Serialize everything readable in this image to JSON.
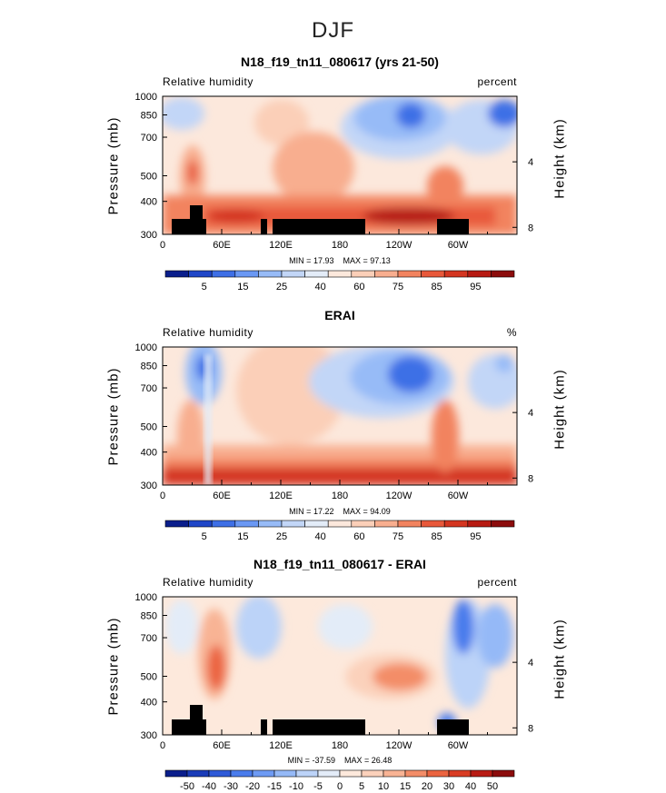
{
  "figure_title": "DJF",
  "chart_data": [
    {
      "type": "heatmap",
      "title": "N18_f19_tn11_080617 (yrs 21-50)",
      "left_label": "Relative humidity",
      "right_label": "percent",
      "ylabel": "Pressure (mb)",
      "ylabel_right": "Height (km)",
      "yticks": [
        "300",
        "400",
        "500",
        "700",
        "850",
        "1000"
      ],
      "yticks_right": [
        "8",
        "4"
      ],
      "xticks": [
        "0",
        "60E",
        "120E",
        "180",
        "120W",
        "60W"
      ],
      "min_label": "MIN =",
      "min_value": "17.93",
      "max_label": "MAX =",
      "max_value": "97.13",
      "colorbar_labels": [
        "5",
        "15",
        "25",
        "40",
        "60",
        "75",
        "85",
        "95"
      ],
      "colorbar_colors": [
        "#0a1e8c",
        "#1f46c8",
        "#3e6fe6",
        "#6a98f4",
        "#97bbf7",
        "#c2d6f7",
        "#e3ecf8",
        "#fce8dc",
        "#fbcfb8",
        "#f8ae8f",
        "#f2835f",
        "#e8583a",
        "#d43520",
        "#b71a12",
        "#8c0c0c"
      ],
      "ylim": [
        1000,
        300
      ],
      "xlim": [
        0,
        360
      ]
    },
    {
      "type": "heatmap",
      "title": "ERAI",
      "left_label": "Relative humidity",
      "right_label": "%",
      "ylabel": "Pressure (mb)",
      "ylabel_right": "Height (km)",
      "yticks": [
        "300",
        "400",
        "500",
        "700",
        "850",
        "1000"
      ],
      "yticks_right": [
        "8",
        "4"
      ],
      "xticks": [
        "0",
        "60E",
        "120E",
        "180",
        "120W",
        "60W"
      ],
      "min_label": "MIN =",
      "min_value": "17.22",
      "max_label": "MAX =",
      "max_value": "94.09",
      "colorbar_labels": [
        "5",
        "15",
        "25",
        "40",
        "60",
        "75",
        "85",
        "95"
      ],
      "colorbar_colors": [
        "#0a1e8c",
        "#1f46c8",
        "#3e6fe6",
        "#6a98f4",
        "#97bbf7",
        "#c2d6f7",
        "#e3ecf8",
        "#fce8dc",
        "#fbcfb8",
        "#f8ae8f",
        "#f2835f",
        "#e8583a",
        "#d43520",
        "#b71a12",
        "#8c0c0c"
      ],
      "ylim": [
        1000,
        300
      ],
      "xlim": [
        0,
        360
      ]
    },
    {
      "type": "heatmap",
      "title": "N18_f19_tn11_080617 - ERAI",
      "left_label": "Relative humidity",
      "right_label": "percent",
      "ylabel": "Pressure (mb)",
      "ylabel_right": "Height (km)",
      "yticks": [
        "300",
        "400",
        "500",
        "700",
        "850",
        "1000"
      ],
      "yticks_right": [
        "8",
        "4"
      ],
      "xticks": [
        "0",
        "60E",
        "120E",
        "180",
        "120W",
        "60W"
      ],
      "min_label": "MIN =",
      "min_value": "-37.59",
      "max_label": "MAX =",
      "max_value": "26.48",
      "colorbar_labels": [
        "-50",
        "-40",
        "-30",
        "-20",
        "-15",
        "-10",
        "-5",
        "0",
        "5",
        "10",
        "15",
        "20",
        "30",
        "40",
        "50"
      ],
      "colorbar_colors": [
        "#0a1e8c",
        "#1a3cb8",
        "#2f5ad8",
        "#4a7cec",
        "#6e9bf4",
        "#95b9f7",
        "#bcd3f8",
        "#e3ecf8",
        "#fde9dc",
        "#fbd1bb",
        "#f8b394",
        "#f38d68",
        "#eb6440",
        "#d93d24",
        "#b81c14",
        "#8c0c0c"
      ],
      "ylim": [
        1000,
        300
      ],
      "xlim": [
        0,
        360
      ]
    }
  ]
}
